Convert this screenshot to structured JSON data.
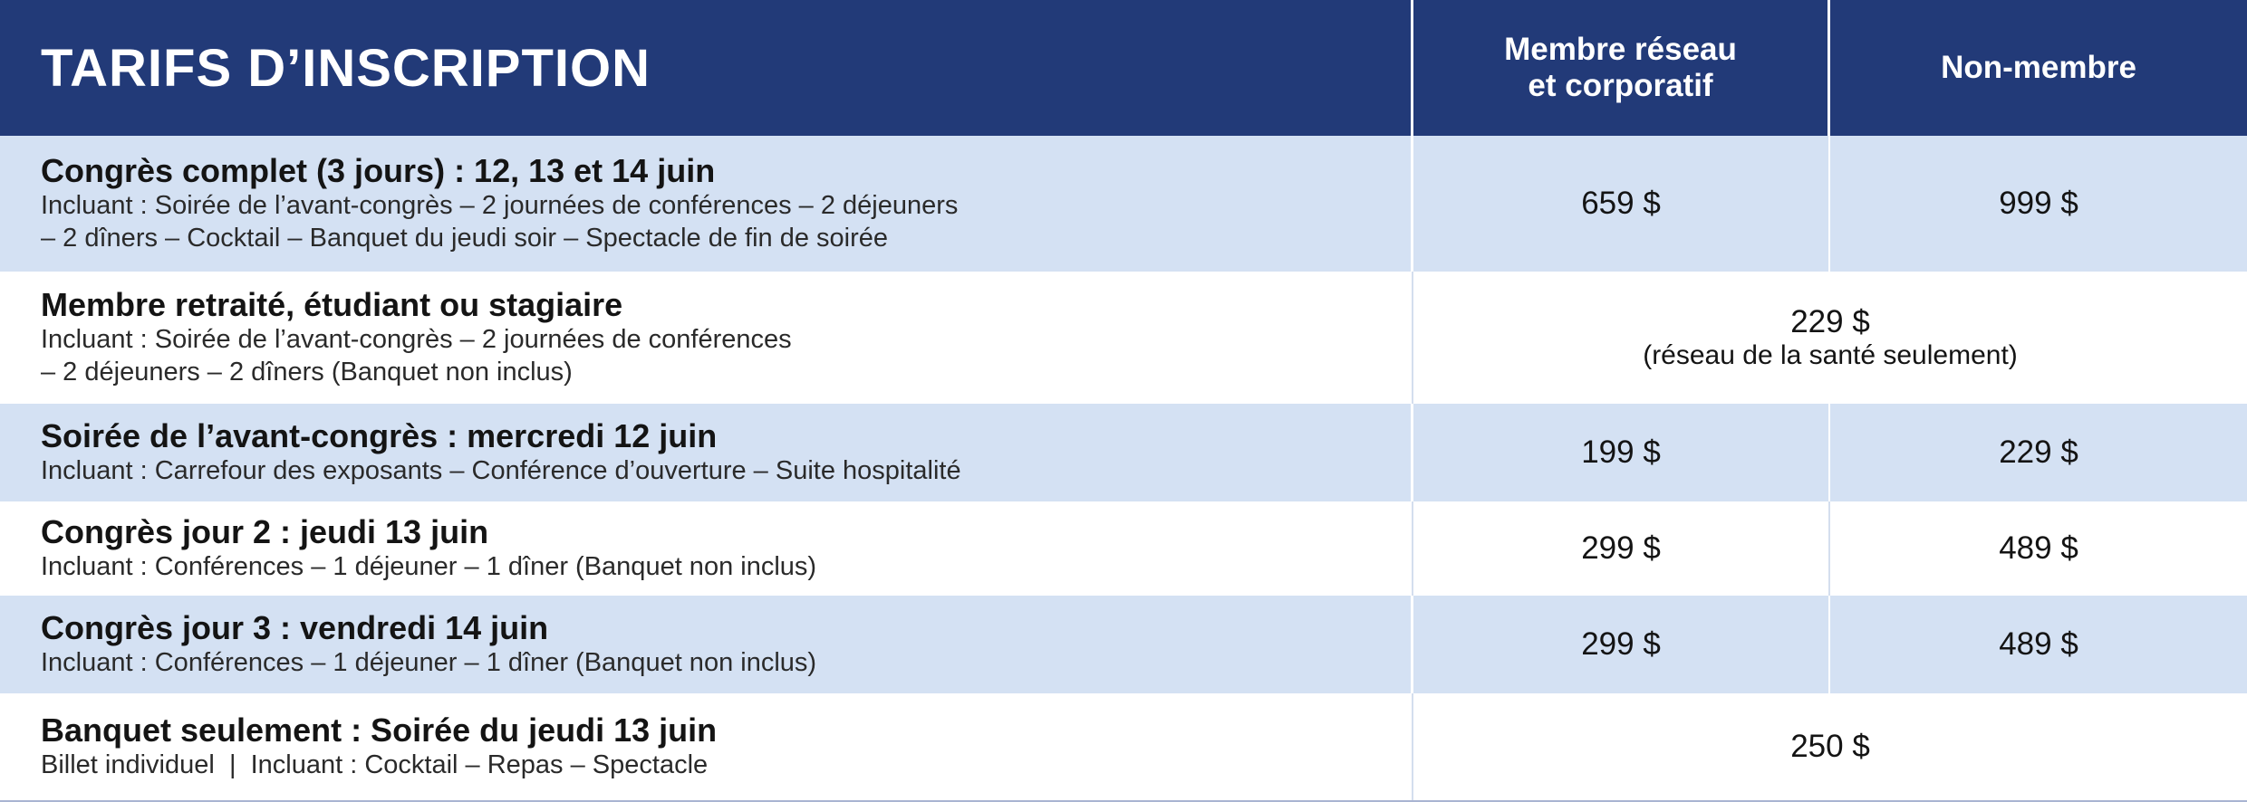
{
  "header": {
    "title": "TARIFS D’INSCRIPTION",
    "col_member_line1": "Membre réseau",
    "col_member_line2": "et corporatif",
    "col_nonmember": "Non-membre"
  },
  "colors": {
    "header_bg": "#223a78",
    "row_blue": "#d4e1f3",
    "row_white": "#ffffff"
  },
  "rows": [
    {
      "title": "Congrès complet (3 jours) : 12, 13 et 14 juin",
      "desc_line1": "Incluant : Soirée de l’avant-congrès – 2 journées de conférences – 2 déjeuners",
      "desc_line2": "– 2 dîners – Cocktail – Banquet du jeudi soir – Spectacle de fin de soirée",
      "member_price": "659 $",
      "nonmember_price": "999 $"
    },
    {
      "title": "Membre retraité, étudiant ou stagiaire",
      "desc_line1": "Incluant : Soirée de l’avant-congrès – 2 journées de conférences",
      "desc_line2": "– 2 déjeuners – 2 dîners (Banquet non inclus)",
      "price": "229 $",
      "price_note": "(réseau de la santé seulement)"
    },
    {
      "title": "Soirée de l’avant-congrès : mercredi 12 juin",
      "desc_line1": "Incluant : Carrefour des exposants – Conférence d’ouverture – Suite hospitalité",
      "member_price": "199 $",
      "nonmember_price": "229 $"
    },
    {
      "title": "Congrès jour 2 : jeudi 13 juin",
      "desc_line1": "Incluant : Conférences – 1 déjeuner – 1 dîner (Banquet non inclus)",
      "member_price": "299 $",
      "nonmember_price": "489 $"
    },
    {
      "title": "Congrès jour 3 : vendredi 14 juin",
      "desc_line1": "Incluant : Conférences – 1 déjeuner – 1 dîner (Banquet non inclus)",
      "member_price": "299 $",
      "nonmember_price": "489 $"
    },
    {
      "title": "Banquet seulement : Soirée du jeudi 13 juin",
      "desc_line1": "Billet individuel  |  Incluant : Cocktail – Repas – Spectacle",
      "price": "250 $"
    }
  ]
}
